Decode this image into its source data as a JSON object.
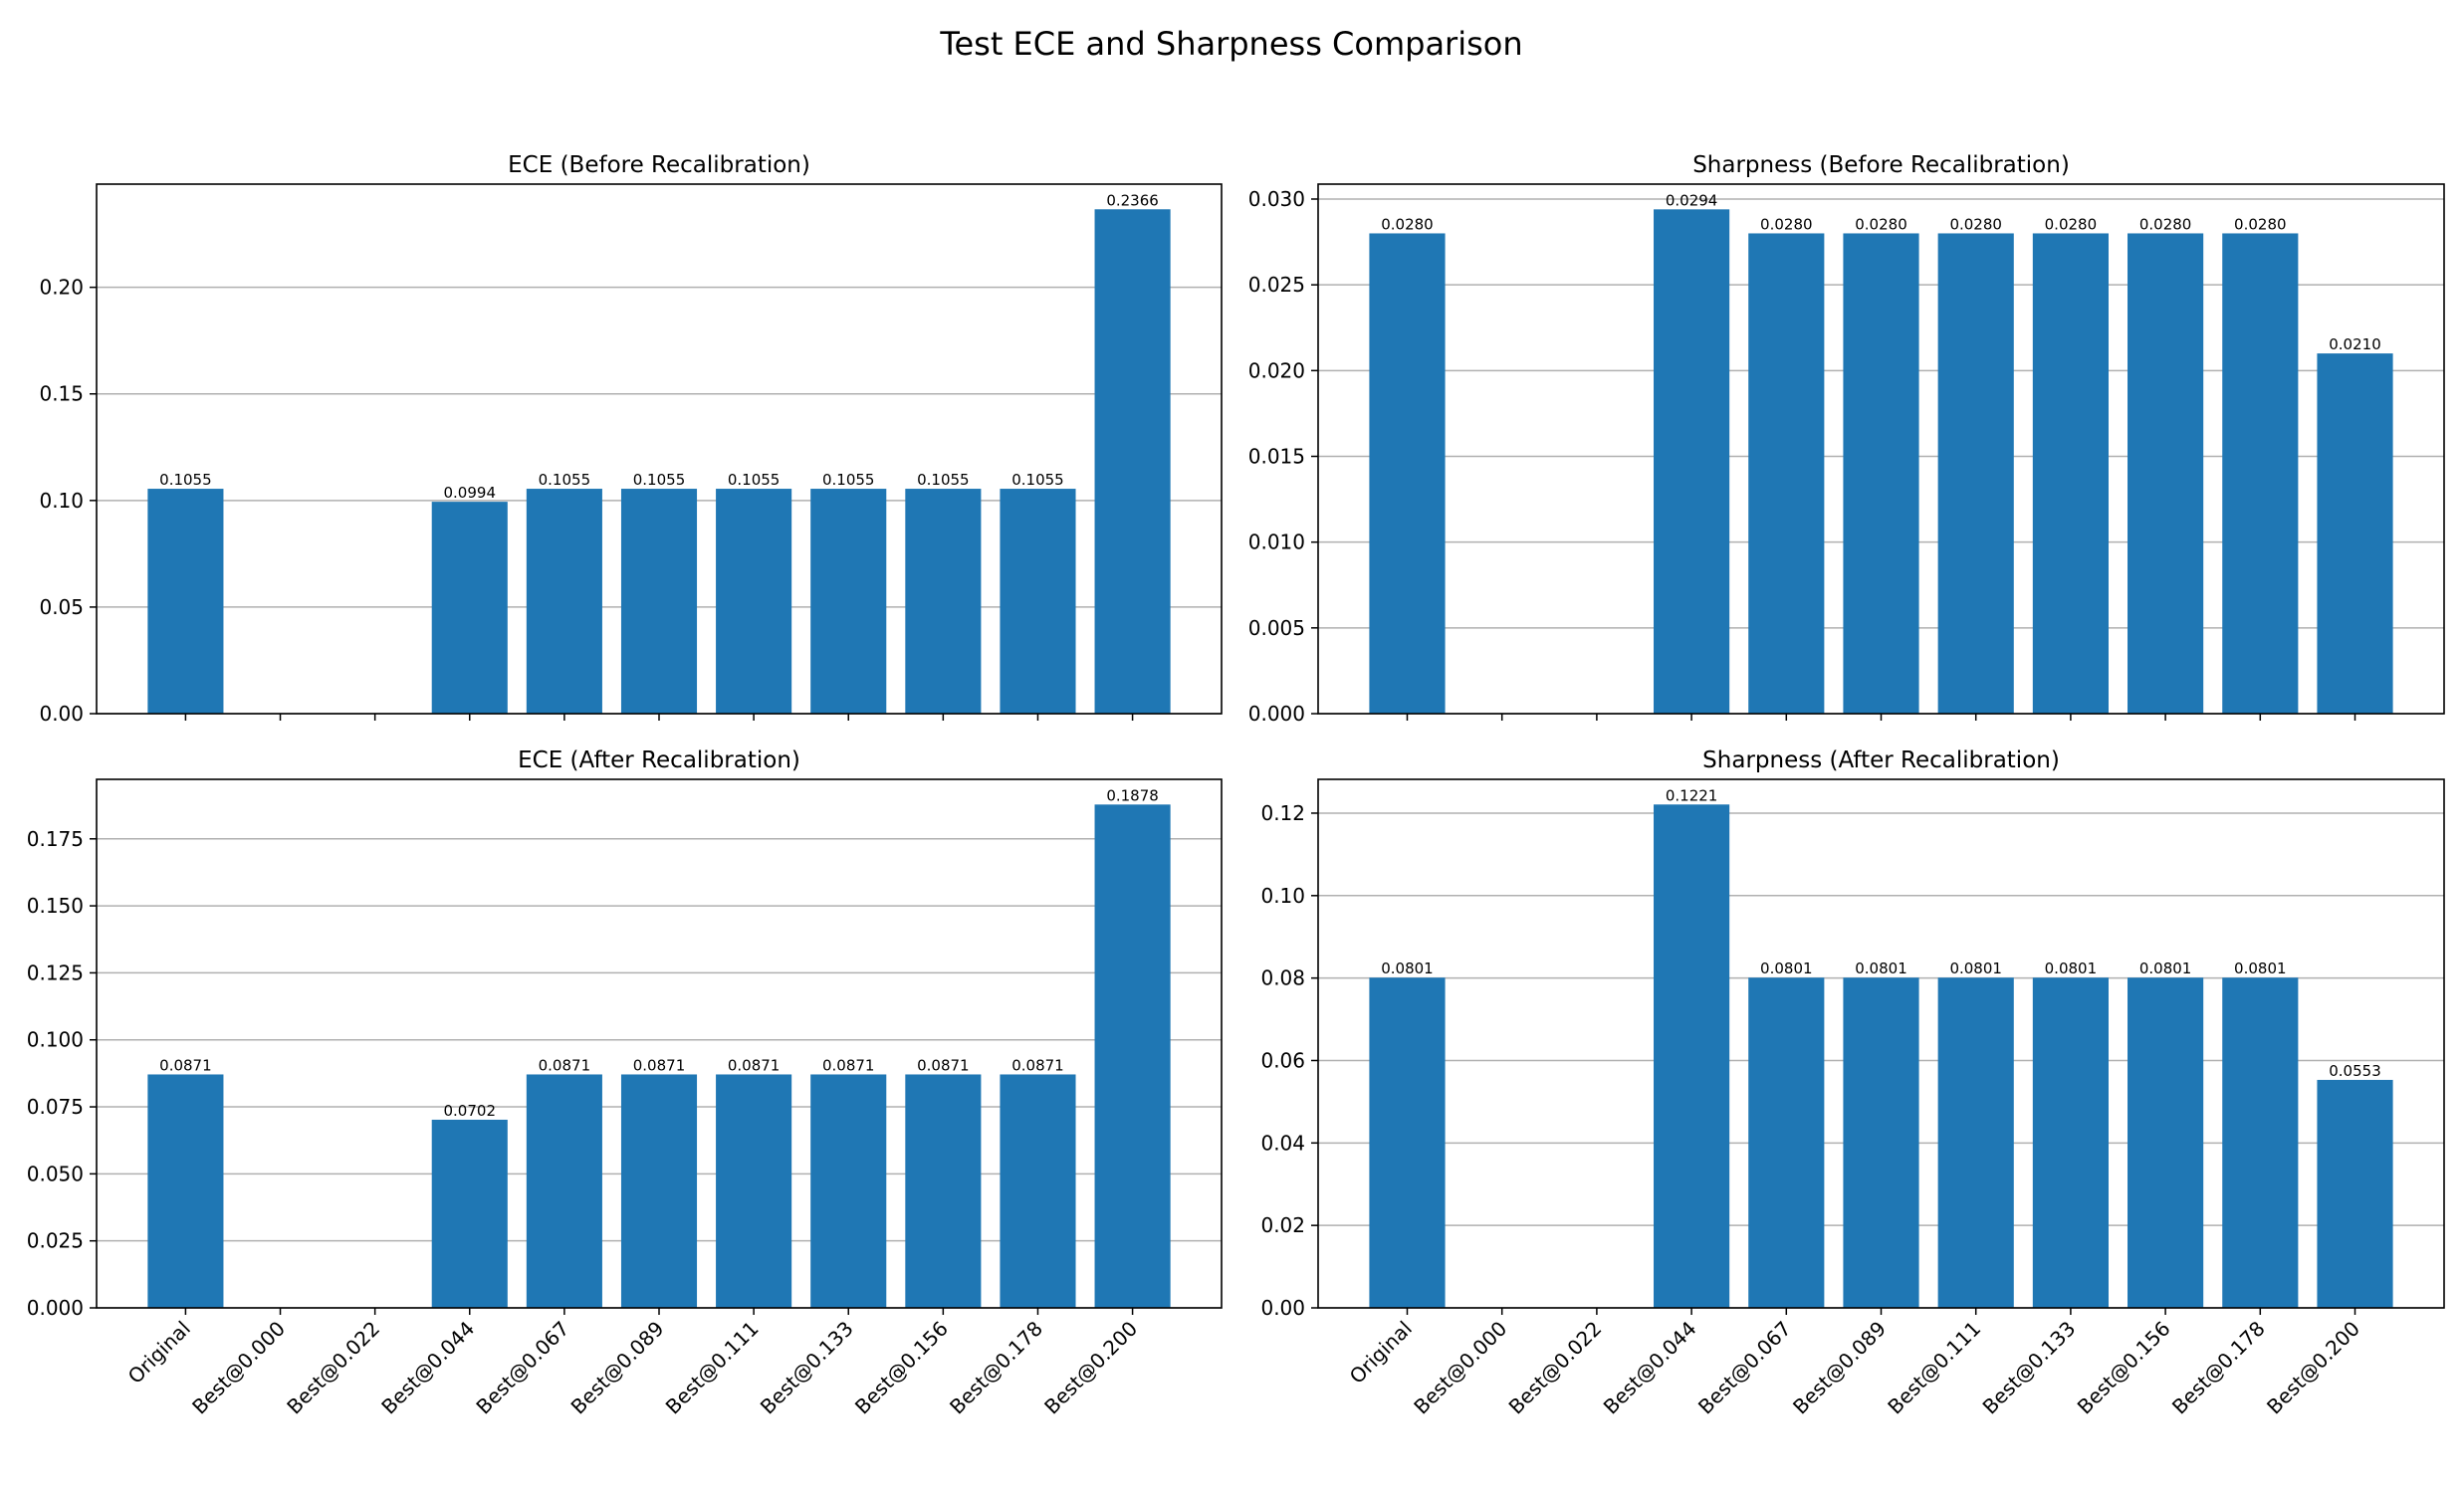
{
  "figure": {
    "title": "Test ECE and Sharpness Comparison",
    "bar_color": "#1f77b4",
    "grid_color": "#b0b0b0"
  },
  "chart_data": [
    {
      "id": "ece-before",
      "type": "bar",
      "title": "ECE (Before Recalibration)",
      "categories": [
        "Original",
        "Best@0.000",
        "Best@0.022",
        "Best@0.044",
        "Best@0.067",
        "Best@0.089",
        "Best@0.111",
        "Best@0.133",
        "Best@0.156",
        "Best@0.178",
        "Best@0.200"
      ],
      "values": [
        0.1055,
        null,
        null,
        0.0994,
        0.1055,
        0.1055,
        0.1055,
        0.1055,
        0.1055,
        0.1055,
        0.2366
      ],
      "value_labels": [
        "0.1055",
        "",
        "",
        "0.0994",
        "0.1055",
        "0.1055",
        "0.1055",
        "0.1055",
        "0.1055",
        "0.1055",
        "0.2366"
      ],
      "ylim": [
        0,
        0.2484
      ],
      "yticks": [
        0,
        0.05,
        0.1,
        0.15,
        0.2
      ],
      "ytick_labels": [
        "0.00",
        "0.05",
        "0.10",
        "0.15",
        "0.20"
      ],
      "show_xtick_labels": false,
      "grid": "y"
    },
    {
      "id": "sharp-before",
      "type": "bar",
      "title": "Sharpness (Before Recalibration)",
      "categories": [
        "Original",
        "Best@0.000",
        "Best@0.022",
        "Best@0.044",
        "Best@0.067",
        "Best@0.089",
        "Best@0.111",
        "Best@0.133",
        "Best@0.156",
        "Best@0.178",
        "Best@0.200"
      ],
      "values": [
        0.028,
        null,
        null,
        0.0294,
        0.028,
        0.028,
        0.028,
        0.028,
        0.028,
        0.028,
        0.021
      ],
      "value_labels": [
        "0.0280",
        "",
        "",
        "0.0294",
        "0.0280",
        "0.0280",
        "0.0280",
        "0.0280",
        "0.0280",
        "0.0280",
        "0.0210"
      ],
      "ylim": [
        0,
        0.03087
      ],
      "yticks": [
        0,
        0.005,
        0.01,
        0.015,
        0.02,
        0.025,
        0.03
      ],
      "ytick_labels": [
        "0.000",
        "0.005",
        "0.010",
        "0.015",
        "0.020",
        "0.025",
        "0.030"
      ],
      "show_xtick_labels": false,
      "grid": "y"
    },
    {
      "id": "ece-after",
      "type": "bar",
      "title": "ECE (After Recalibration)",
      "categories": [
        "Original",
        "Best@0.000",
        "Best@0.022",
        "Best@0.044",
        "Best@0.067",
        "Best@0.089",
        "Best@0.111",
        "Best@0.133",
        "Best@0.156",
        "Best@0.178",
        "Best@0.200"
      ],
      "values": [
        0.0871,
        null,
        null,
        0.0702,
        0.0871,
        0.0871,
        0.0871,
        0.0871,
        0.0871,
        0.0871,
        0.1878
      ],
      "value_labels": [
        "0.0871",
        "",
        "",
        "0.0702",
        "0.0871",
        "0.0871",
        "0.0871",
        "0.0871",
        "0.0871",
        "0.0871",
        "0.1878"
      ],
      "ylim": [
        0,
        0.1972
      ],
      "yticks": [
        0,
        0.025,
        0.05,
        0.075,
        0.1,
        0.125,
        0.15,
        0.175
      ],
      "ytick_labels": [
        "0.000",
        "0.025",
        "0.050",
        "0.075",
        "0.100",
        "0.125",
        "0.150",
        "0.175"
      ],
      "show_xtick_labels": true,
      "grid": "y"
    },
    {
      "id": "sharp-after",
      "type": "bar",
      "title": "Sharpness (After Recalibration)",
      "categories": [
        "Original",
        "Best@0.000",
        "Best@0.022",
        "Best@0.044",
        "Best@0.067",
        "Best@0.089",
        "Best@0.111",
        "Best@0.133",
        "Best@0.156",
        "Best@0.178",
        "Best@0.200"
      ],
      "values": [
        0.0801,
        null,
        null,
        0.1221,
        0.0801,
        0.0801,
        0.0801,
        0.0801,
        0.0801,
        0.0801,
        0.0553
      ],
      "value_labels": [
        "0.0801",
        "",
        "",
        "0.1221",
        "0.0801",
        "0.0801",
        "0.0801",
        "0.0801",
        "0.0801",
        "0.0801",
        "0.0553"
      ],
      "ylim": [
        0,
        0.1282
      ],
      "yticks": [
        0,
        0.02,
        0.04,
        0.06,
        0.08,
        0.1,
        0.12
      ],
      "ytick_labels": [
        "0.00",
        "0.02",
        "0.04",
        "0.06",
        "0.08",
        "0.10",
        "0.12"
      ],
      "show_xtick_labels": true,
      "grid": "y"
    }
  ]
}
